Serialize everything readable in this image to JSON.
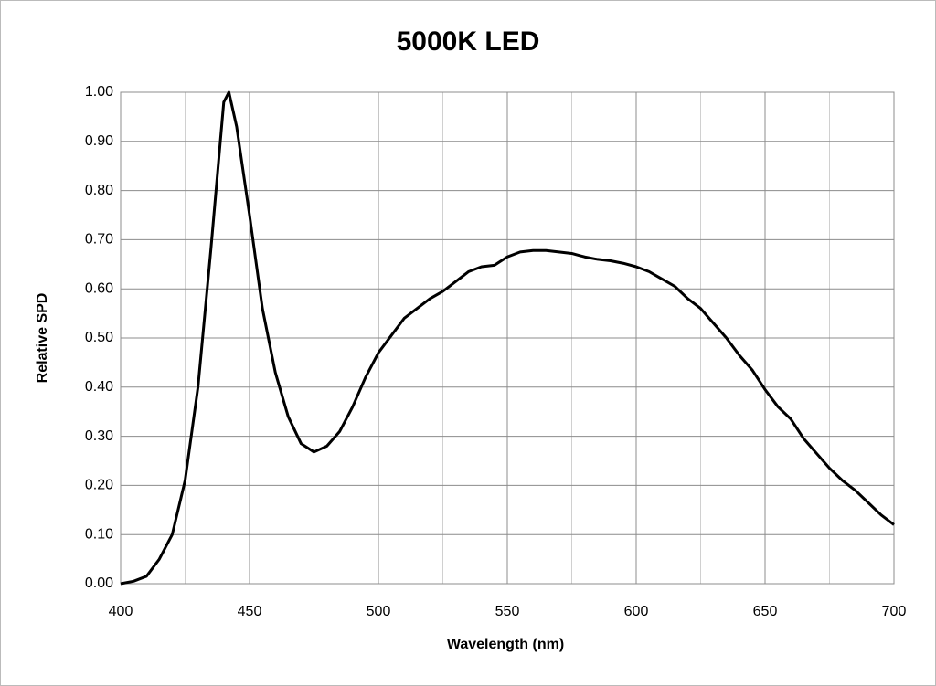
{
  "chart_data": {
    "type": "line",
    "title": "5000K LED",
    "x_label": "Wavelength (nm)",
    "y_label": "Relative SPD",
    "xlim": [
      400,
      700
    ],
    "xticks": [
      400,
      450,
      500,
      550,
      600,
      650,
      700
    ],
    "ylim": [
      0,
      1
    ],
    "yticks": [
      {
        "value": 0,
        "label": "0.00"
      },
      {
        "value": 0.1,
        "label": "0.10"
      },
      {
        "value": 0.2,
        "label": "0.20"
      },
      {
        "value": 0.3,
        "label": "0.30"
      },
      {
        "value": 0.4,
        "label": "0.40"
      },
      {
        "value": 0.5,
        "label": "0.50"
      },
      {
        "value": 0.6,
        "label": "0.60"
      },
      {
        "value": 0.7,
        "label": "0.70"
      },
      {
        "value": 0.8,
        "label": "0.80"
      },
      {
        "value": 0.9,
        "label": "0.90"
      },
      {
        "value": 1,
        "label": "1.00"
      }
    ],
    "grid": true,
    "minor_x_grid": true,
    "x": [
      400,
      405,
      410,
      415,
      420,
      425,
      430,
      435,
      440,
      442,
      445,
      450,
      455,
      460,
      465,
      470,
      475,
      480,
      485,
      490,
      495,
      500,
      505,
      510,
      515,
      520,
      525,
      530,
      535,
      540,
      545,
      550,
      555,
      560,
      565,
      570,
      575,
      580,
      585,
      590,
      595,
      600,
      605,
      610,
      615,
      620,
      625,
      630,
      635,
      640,
      645,
      650,
      655,
      660,
      665,
      670,
      675,
      680,
      685,
      690,
      695,
      700
    ],
    "series": [
      {
        "color": "#000000",
        "values": [
          0,
          0.005,
          0.015,
          0.05,
          0.1,
          0.21,
          0.4,
          0.68,
          0.98,
          1.0,
          0.93,
          0.75,
          0.56,
          0.43,
          0.34,
          0.285,
          0.268,
          0.28,
          0.31,
          0.36,
          0.42,
          0.47,
          0.505,
          0.54,
          0.56,
          0.58,
          0.595,
          0.615,
          0.635,
          0.645,
          0.648,
          0.665,
          0.675,
          0.678,
          0.678,
          0.675,
          0.672,
          0.665,
          0.66,
          0.657,
          0.652,
          0.645,
          0.635,
          0.62,
          0.605,
          0.58,
          0.56,
          0.53,
          0.5,
          0.465,
          0.435,
          0.395,
          0.36,
          0.335,
          0.295,
          0.265,
          0.235,
          0.21,
          0.19,
          0.165,
          0.14,
          0.12
        ]
      }
    ]
  }
}
